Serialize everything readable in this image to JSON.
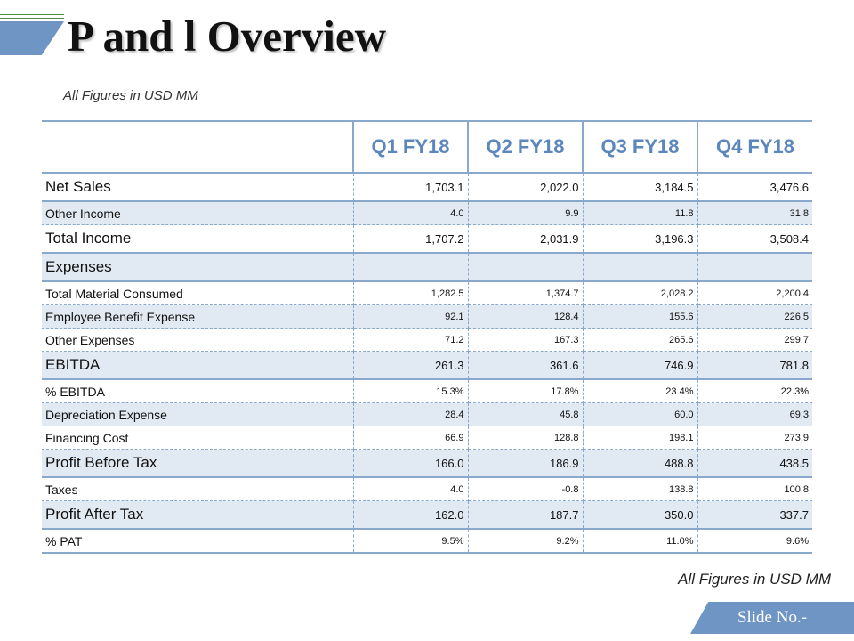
{
  "slide": {
    "title": "P and l Overview",
    "subtitle_top": "All Figures in USD MM",
    "subtitle_bottom": "All Figures in USD MM",
    "slide_no": "Slide No.-"
  },
  "colors": {
    "accent": "#6f95c4",
    "header_text": "#5b87bd",
    "row_shade": "#e1e9f3",
    "border": "#8aa8cc"
  },
  "table": {
    "headers": [
      "Q1 FY18",
      "Q2 FY18",
      "Q3 FY18",
      "Q4 FY18"
    ],
    "rows": [
      {
        "label": "Net Sales",
        "values": [
          "1,703.1",
          "2,022.0",
          "3,184.5",
          "3,476.6"
        ],
        "kind": "major",
        "shaded": false
      },
      {
        "label": "Other Income",
        "values": [
          "4.0",
          "9.9",
          "11.8",
          "31.8"
        ],
        "kind": "minor",
        "shaded": true
      },
      {
        "label": "Total Income",
        "values": [
          "1,707.2",
          "2,031.9",
          "3,196.3",
          "3,508.4"
        ],
        "kind": "major",
        "shaded": false
      },
      {
        "label": "Expenses",
        "values": [
          "",
          "",
          "",
          ""
        ],
        "kind": "major",
        "shaded": true
      },
      {
        "label": "Total Material Consumed",
        "values": [
          "1,282.5",
          "1,374.7",
          "2,028.2",
          "2,200.4"
        ],
        "kind": "minor",
        "shaded": false
      },
      {
        "label": "Employee Benefit Expense",
        "values": [
          "92.1",
          "128.4",
          "155.6",
          "226.5"
        ],
        "kind": "minor",
        "shaded": true
      },
      {
        "label": "Other Expenses",
        "values": [
          "71.2",
          "167.3",
          "265.6",
          "299.7"
        ],
        "kind": "minor",
        "shaded": false
      },
      {
        "label": "EBITDA",
        "values": [
          "261.3",
          "361.6",
          "746.9",
          "781.8"
        ],
        "kind": "major",
        "shaded": true
      },
      {
        "label": "% EBITDA",
        "values": [
          "15.3%",
          "17.8%",
          "23.4%",
          "22.3%"
        ],
        "kind": "minor",
        "shaded": false
      },
      {
        "label": "Depreciation Expense",
        "values": [
          "28.4",
          "45.8",
          "60.0",
          "69.3"
        ],
        "kind": "minor",
        "shaded": true
      },
      {
        "label": "Financing Cost",
        "values": [
          "66.9",
          "128.8",
          "198.1",
          "273.9"
        ],
        "kind": "minor",
        "shaded": false
      },
      {
        "label": "Profit Before Tax",
        "values": [
          "166.0",
          "186.9",
          "488.8",
          "438.5"
        ],
        "kind": "major",
        "shaded": true
      },
      {
        "label": "Taxes",
        "values": [
          "4.0",
          "-0.8",
          "138.8",
          "100.8"
        ],
        "kind": "minor",
        "shaded": false
      },
      {
        "label": "Profit After Tax",
        "values": [
          "162.0",
          "187.7",
          "350.0",
          "337.7"
        ],
        "kind": "major",
        "shaded": true
      },
      {
        "label": "% PAT",
        "values": [
          "9.5%",
          "9.2%",
          "11.0%",
          "9.6%"
        ],
        "kind": "minor",
        "shaded": false
      }
    ]
  }
}
